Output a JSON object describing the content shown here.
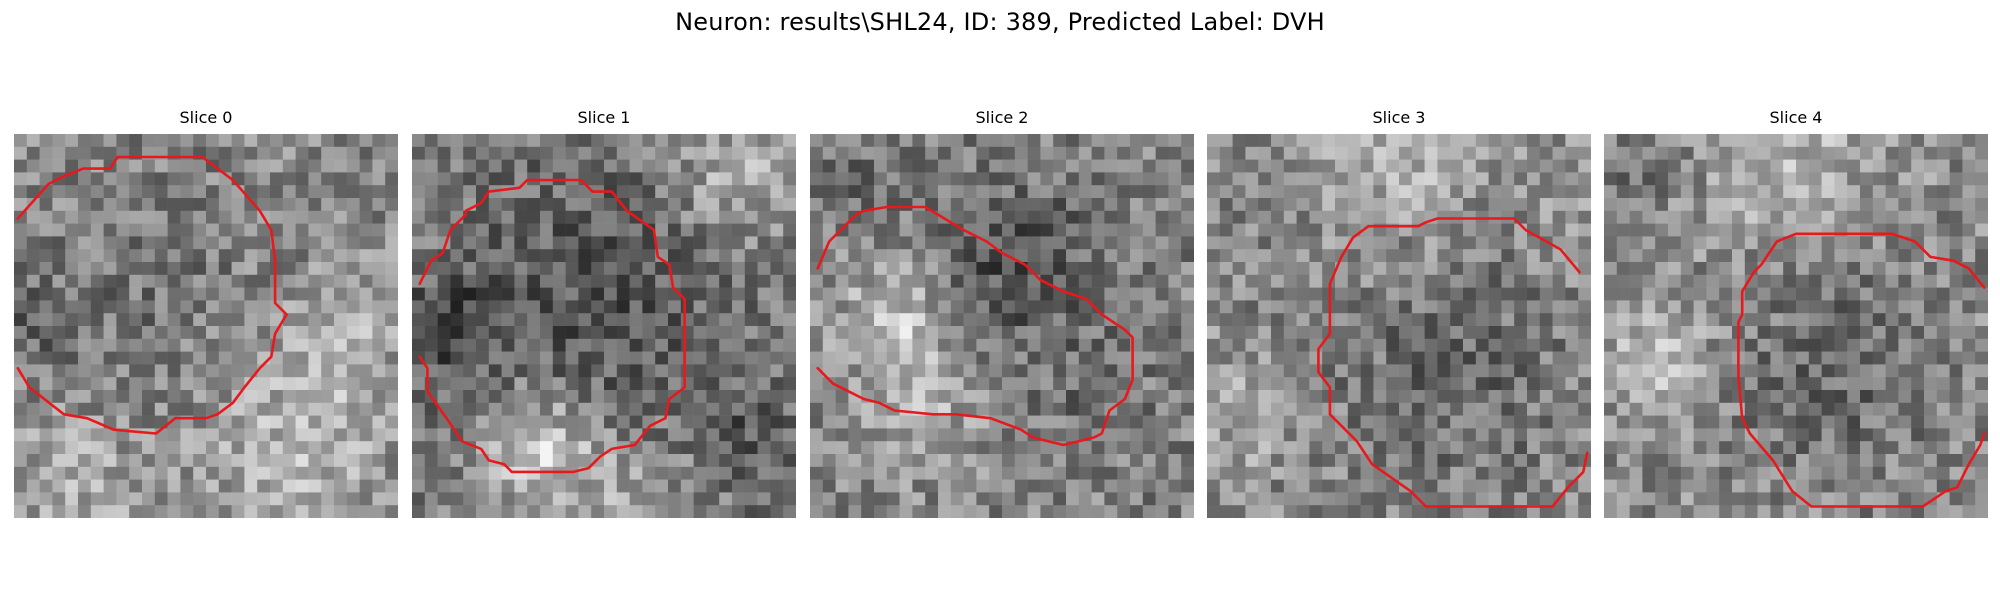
{
  "figure": {
    "title": "Neuron: results\\SHL24, ID: 389, Predicted Label: DVH"
  },
  "colors": {
    "contour": "#e8191c",
    "background": "#ffffff"
  },
  "panels": [
    {
      "title": "Slice 0",
      "contour_segments": [
        [
          [
            0.01,
            0.22
          ],
          [
            0.09,
            0.13
          ],
          [
            0.13,
            0.11
          ],
          [
            0.18,
            0.09
          ],
          [
            0.25,
            0.09
          ],
          [
            0.27,
            0.06
          ],
          [
            0.49,
            0.06
          ],
          [
            0.57,
            0.12
          ],
          [
            0.64,
            0.2
          ],
          [
            0.67,
            0.25
          ],
          [
            0.68,
            0.33
          ],
          [
            0.68,
            0.44
          ],
          [
            0.71,
            0.47
          ],
          [
            0.68,
            0.52
          ],
          [
            0.67,
            0.58
          ],
          [
            0.64,
            0.61
          ],
          [
            0.6,
            0.66
          ],
          [
            0.57,
            0.7
          ],
          [
            0.53,
            0.73
          ],
          [
            0.5,
            0.74
          ],
          [
            0.42,
            0.74
          ],
          [
            0.37,
            0.78
          ],
          [
            0.26,
            0.77
          ],
          [
            0.19,
            0.74
          ],
          [
            0.13,
            0.73
          ],
          [
            0.04,
            0.66
          ],
          [
            0.01,
            0.61
          ]
        ]
      ]
    },
    {
      "title": "Slice 1",
      "contour_segments": [
        [
          [
            0.02,
            0.39
          ],
          [
            0.05,
            0.33
          ],
          [
            0.08,
            0.31
          ],
          [
            0.1,
            0.25
          ],
          [
            0.14,
            0.21
          ],
          [
            0.14,
            0.2
          ],
          [
            0.18,
            0.18
          ],
          [
            0.2,
            0.15
          ],
          [
            0.28,
            0.14
          ],
          [
            0.3,
            0.12
          ],
          [
            0.44,
            0.12
          ],
          [
            0.47,
            0.15
          ],
          [
            0.52,
            0.15
          ],
          [
            0.56,
            0.2
          ],
          [
            0.63,
            0.25
          ],
          [
            0.64,
            0.32
          ],
          [
            0.67,
            0.34
          ],
          [
            0.68,
            0.4
          ],
          [
            0.71,
            0.43
          ],
          [
            0.71,
            0.66
          ],
          [
            0.67,
            0.69
          ],
          [
            0.66,
            0.74
          ],
          [
            0.62,
            0.76
          ],
          [
            0.58,
            0.81
          ],
          [
            0.52,
            0.82
          ],
          [
            0.49,
            0.84
          ],
          [
            0.46,
            0.87
          ],
          [
            0.42,
            0.88
          ],
          [
            0.26,
            0.88
          ],
          [
            0.24,
            0.86
          ],
          [
            0.2,
            0.85
          ],
          [
            0.18,
            0.82
          ],
          [
            0.13,
            0.8
          ],
          [
            0.09,
            0.74
          ],
          [
            0.04,
            0.67
          ],
          [
            0.04,
            0.61
          ],
          [
            0.02,
            0.58
          ]
        ]
      ]
    },
    {
      "title": "Slice 2",
      "contour_segments": [
        [
          [
            0.02,
            0.35
          ],
          [
            0.05,
            0.28
          ],
          [
            0.08,
            0.25
          ],
          [
            0.1,
            0.23
          ],
          [
            0.12,
            0.21
          ],
          [
            0.14,
            0.2
          ],
          [
            0.2,
            0.19
          ],
          [
            0.3,
            0.19
          ],
          [
            0.35,
            0.22
          ],
          [
            0.4,
            0.25
          ],
          [
            0.46,
            0.28
          ],
          [
            0.5,
            0.31
          ],
          [
            0.56,
            0.34
          ],
          [
            0.6,
            0.38
          ],
          [
            0.66,
            0.41
          ],
          [
            0.72,
            0.43
          ],
          [
            0.76,
            0.47
          ],
          [
            0.82,
            0.51
          ],
          [
            0.84,
            0.53
          ],
          [
            0.84,
            0.61
          ],
          [
            0.84,
            0.64
          ],
          [
            0.82,
            0.69
          ],
          [
            0.78,
            0.72
          ],
          [
            0.76,
            0.78
          ],
          [
            0.74,
            0.79
          ],
          [
            0.7,
            0.8
          ],
          [
            0.66,
            0.81
          ],
          [
            0.62,
            0.8
          ],
          [
            0.58,
            0.79
          ],
          [
            0.55,
            0.77
          ],
          [
            0.47,
            0.74
          ],
          [
            0.38,
            0.73
          ],
          [
            0.32,
            0.73
          ],
          [
            0.22,
            0.72
          ],
          [
            0.18,
            0.7
          ],
          [
            0.14,
            0.69
          ],
          [
            0.1,
            0.67
          ],
          [
            0.06,
            0.65
          ],
          [
            0.02,
            0.61
          ]
        ]
      ]
    },
    {
      "title": "Slice 3",
      "contour_segments": [
        [
          [
            0.97,
            0.36
          ],
          [
            0.92,
            0.3
          ],
          [
            0.83,
            0.25
          ],
          [
            0.8,
            0.22
          ],
          [
            0.6,
            0.22
          ],
          [
            0.57,
            0.23
          ],
          [
            0.55,
            0.24
          ],
          [
            0.42,
            0.24
          ],
          [
            0.38,
            0.27
          ],
          [
            0.35,
            0.32
          ],
          [
            0.32,
            0.39
          ],
          [
            0.32,
            0.52
          ],
          [
            0.29,
            0.56
          ],
          [
            0.29,
            0.62
          ],
          [
            0.32,
            0.66
          ],
          [
            0.32,
            0.73
          ],
          [
            0.39,
            0.8
          ],
          [
            0.43,
            0.86
          ],
          [
            0.53,
            0.93
          ],
          [
            0.57,
            0.97
          ],
          [
            0.9,
            0.97
          ],
          [
            0.94,
            0.92
          ],
          [
            0.98,
            0.88
          ],
          [
            0.99,
            0.83
          ]
        ]
      ]
    },
    {
      "title": "Slice 4",
      "contour_segments": [
        [
          [
            0.99,
            0.4
          ],
          [
            0.95,
            0.35
          ],
          [
            0.91,
            0.33
          ],
          [
            0.85,
            0.32
          ],
          [
            0.81,
            0.28
          ],
          [
            0.75,
            0.26
          ],
          [
            0.5,
            0.26
          ],
          [
            0.45,
            0.28
          ],
          [
            0.43,
            0.31
          ],
          [
            0.41,
            0.34
          ],
          [
            0.39,
            0.36
          ],
          [
            0.36,
            0.41
          ],
          [
            0.36,
            0.47
          ],
          [
            0.35,
            0.49
          ],
          [
            0.35,
            0.63
          ],
          [
            0.36,
            0.74
          ],
          [
            0.38,
            0.78
          ],
          [
            0.44,
            0.85
          ],
          [
            0.49,
            0.93
          ],
          [
            0.54,
            0.97
          ],
          [
            0.83,
            0.97
          ],
          [
            0.89,
            0.93
          ],
          [
            0.92,
            0.92
          ],
          [
            0.95,
            0.86
          ],
          [
            0.98,
            0.81
          ],
          [
            0.99,
            0.78
          ]
        ]
      ]
    }
  ]
}
